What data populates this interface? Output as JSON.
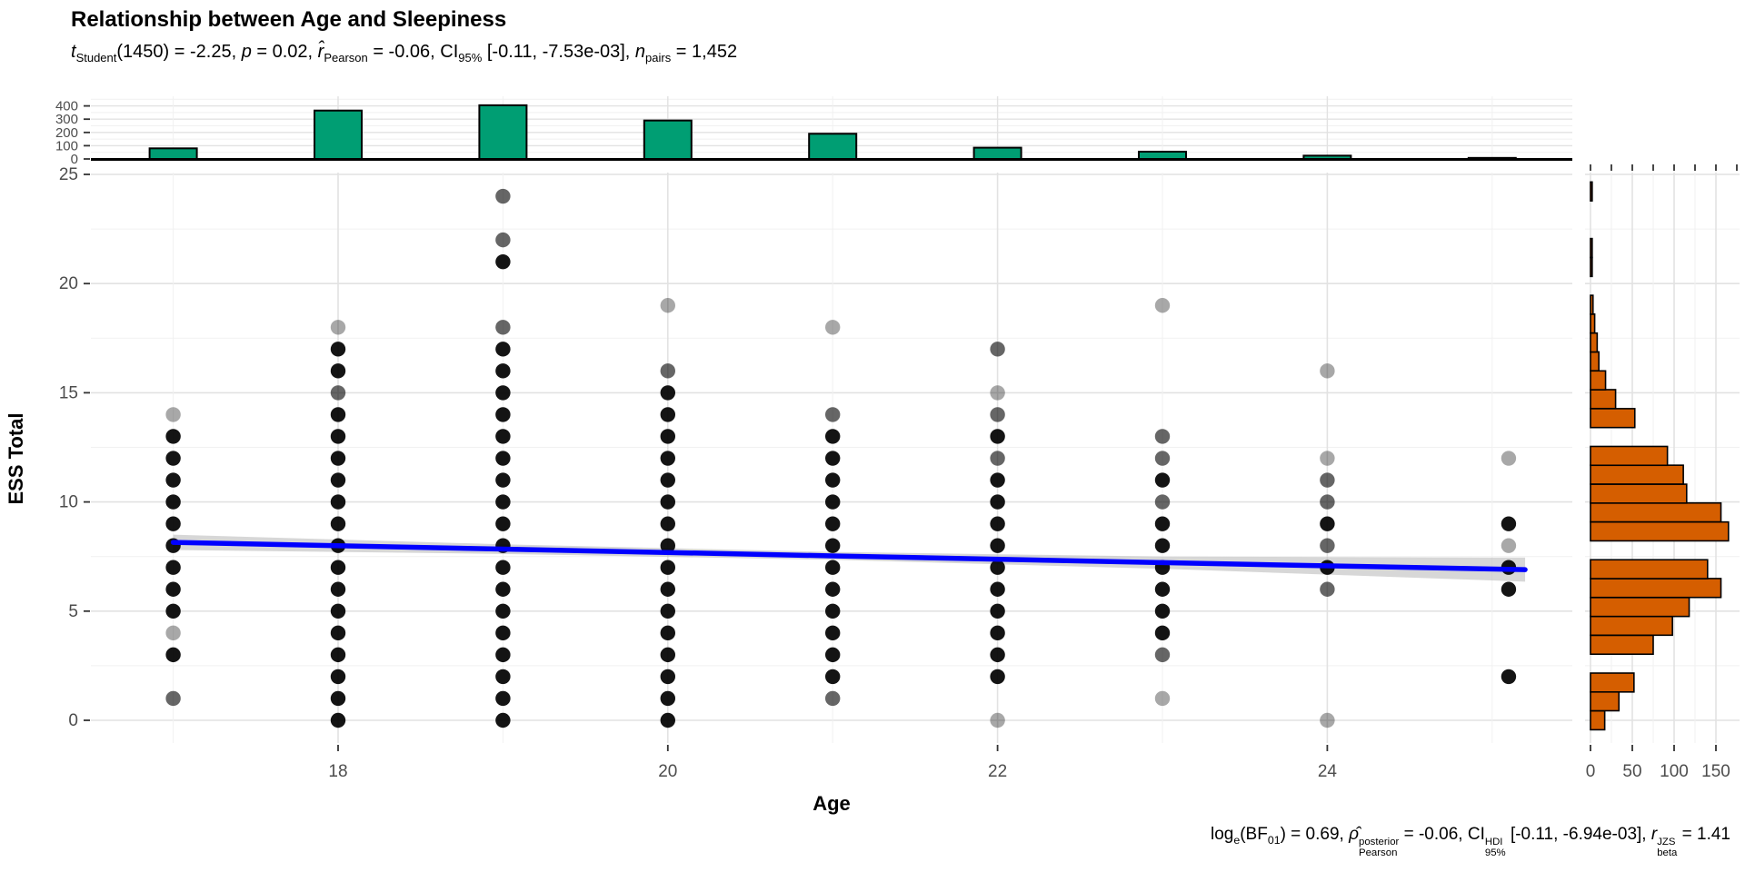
{
  "chart_data": {
    "type": "scatter",
    "title": "Relationship between Age and Sleepiness",
    "subtitle": "*t*_{Student}(1450) = -2.25, *p* = 0.02, *r̂*_{Pearson} = -0.06, CI_{95%} [-0.11, -7.53e-03], *n*_{pairs} = 1,452",
    "caption": "log_{e}(BF_{01}) = 0.69, *ρ̂*^{posterior}_{Pearson} = -0.06, CI^{HDI}_{95%} [-0.11, -6.94e-03], *r*^{JZS}_{beta} = 1.41",
    "xlabel": "Age",
    "ylabel": "ESS Total",
    "x_range": [
      16.5,
      25.5
    ],
    "y_range": [
      -1,
      25.1
    ],
    "x_ticks": [
      18,
      20,
      22,
      24
    ],
    "x_minor_ticks": [
      17,
      19,
      21,
      23,
      25
    ],
    "y_ticks": [
      0,
      5,
      10,
      15,
      20,
      25
    ],
    "y_minor_ticks": [
      2.5,
      7.5,
      12.5,
      17.5,
      22.5
    ],
    "grid": true,
    "legend": "none",
    "colors": {
      "top_hist_fill": "#009E73",
      "right_hist_fill": "#D55E00",
      "bar_stroke": "#000000",
      "regression_line": "#0000FF",
      "ci_ribbon": "#BDBDBD",
      "point": "#000000",
      "tick_label": "#4D4D4D",
      "axis_tick": "#333333",
      "grid_major": "#E2E2E2",
      "grid_minor": "#F1F1F1"
    },
    "points": [
      [
        17,
        14,
        "l"
      ],
      [
        17,
        13,
        "d"
      ],
      [
        17,
        12,
        "d"
      ],
      [
        17,
        11,
        "d"
      ],
      [
        17,
        10,
        "d"
      ],
      [
        17,
        9,
        "d"
      ],
      [
        17,
        8,
        "d"
      ],
      [
        17,
        7,
        "d"
      ],
      [
        17,
        6,
        "d"
      ],
      [
        17,
        5,
        "d"
      ],
      [
        17,
        4,
        "l"
      ],
      [
        17,
        3,
        "d"
      ],
      [
        17,
        1,
        "m"
      ],
      [
        18,
        18,
        "l"
      ],
      [
        18,
        17,
        "d"
      ],
      [
        18,
        16,
        "d"
      ],
      [
        18,
        15,
        "m"
      ],
      [
        18,
        14,
        "d"
      ],
      [
        18,
        13,
        "d"
      ],
      [
        18,
        12,
        "d"
      ],
      [
        18,
        11,
        "d"
      ],
      [
        18,
        10,
        "d"
      ],
      [
        18,
        9,
        "d"
      ],
      [
        18,
        8,
        "d"
      ],
      [
        18,
        7,
        "d"
      ],
      [
        18,
        6,
        "d"
      ],
      [
        18,
        5,
        "d"
      ],
      [
        18,
        4,
        "d"
      ],
      [
        18,
        3,
        "d"
      ],
      [
        18,
        2,
        "d"
      ],
      [
        18,
        1,
        "d"
      ],
      [
        18,
        0,
        "d"
      ],
      [
        19,
        24,
        "m"
      ],
      [
        19,
        22,
        "m"
      ],
      [
        19,
        21,
        "d"
      ],
      [
        19,
        18,
        "m"
      ],
      [
        19,
        17,
        "d"
      ],
      [
        19,
        16,
        "d"
      ],
      [
        19,
        15,
        "d"
      ],
      [
        19,
        14,
        "d"
      ],
      [
        19,
        13,
        "d"
      ],
      [
        19,
        12,
        "d"
      ],
      [
        19,
        11,
        "d"
      ],
      [
        19,
        10,
        "d"
      ],
      [
        19,
        9,
        "d"
      ],
      [
        19,
        8,
        "d"
      ],
      [
        19,
        7,
        "d"
      ],
      [
        19,
        6,
        "d"
      ],
      [
        19,
        5,
        "d"
      ],
      [
        19,
        4,
        "d"
      ],
      [
        19,
        3,
        "d"
      ],
      [
        19,
        2,
        "d"
      ],
      [
        19,
        1,
        "d"
      ],
      [
        19,
        0,
        "d"
      ],
      [
        20,
        19,
        "l"
      ],
      [
        20,
        16,
        "m"
      ],
      [
        20,
        15,
        "d"
      ],
      [
        20,
        14,
        "d"
      ],
      [
        20,
        13,
        "d"
      ],
      [
        20,
        12,
        "d"
      ],
      [
        20,
        11,
        "d"
      ],
      [
        20,
        10,
        "d"
      ],
      [
        20,
        9,
        "d"
      ],
      [
        20,
        8,
        "d"
      ],
      [
        20,
        7,
        "d"
      ],
      [
        20,
        6,
        "d"
      ],
      [
        20,
        5,
        "d"
      ],
      [
        20,
        4,
        "d"
      ],
      [
        20,
        3,
        "d"
      ],
      [
        20,
        2,
        "d"
      ],
      [
        20,
        1,
        "d"
      ],
      [
        20,
        0,
        "d"
      ],
      [
        21,
        18,
        "l"
      ],
      [
        21,
        14,
        "m"
      ],
      [
        21,
        13,
        "d"
      ],
      [
        21,
        12,
        "d"
      ],
      [
        21,
        11,
        "d"
      ],
      [
        21,
        10,
        "d"
      ],
      [
        21,
        9,
        "d"
      ],
      [
        21,
        8,
        "d"
      ],
      [
        21,
        7,
        "d"
      ],
      [
        21,
        6,
        "d"
      ],
      [
        21,
        5,
        "d"
      ],
      [
        21,
        4,
        "d"
      ],
      [
        21,
        3,
        "d"
      ],
      [
        21,
        2,
        "d"
      ],
      [
        21,
        1,
        "m"
      ],
      [
        22,
        17,
        "m"
      ],
      [
        22,
        15,
        "l"
      ],
      [
        22,
        14,
        "m"
      ],
      [
        22,
        13,
        "d"
      ],
      [
        22,
        12,
        "m"
      ],
      [
        22,
        11,
        "d"
      ],
      [
        22,
        10,
        "d"
      ],
      [
        22,
        9,
        "d"
      ],
      [
        22,
        8,
        "d"
      ],
      [
        22,
        7,
        "d"
      ],
      [
        22,
        6,
        "d"
      ],
      [
        22,
        5,
        "d"
      ],
      [
        22,
        4,
        "d"
      ],
      [
        22,
        3,
        "d"
      ],
      [
        22,
        2,
        "d"
      ],
      [
        22,
        0,
        "l"
      ],
      [
        23,
        19,
        "l"
      ],
      [
        23,
        13,
        "m"
      ],
      [
        23,
        12,
        "m"
      ],
      [
        23,
        11,
        "d"
      ],
      [
        23,
        10,
        "m"
      ],
      [
        23,
        9,
        "d"
      ],
      [
        23,
        8,
        "d"
      ],
      [
        23,
        7,
        "d"
      ],
      [
        23,
        6,
        "d"
      ],
      [
        23,
        5,
        "d"
      ],
      [
        23,
        4,
        "d"
      ],
      [
        23,
        3,
        "m"
      ],
      [
        23,
        1,
        "l"
      ],
      [
        24,
        16,
        "l"
      ],
      [
        24,
        12,
        "l"
      ],
      [
        24,
        11,
        "m"
      ],
      [
        24,
        10,
        "m"
      ],
      [
        24,
        9,
        "d"
      ],
      [
        24,
        8,
        "m"
      ],
      [
        24,
        7,
        "d"
      ],
      [
        24,
        6,
        "m"
      ],
      [
        24,
        0,
        "l"
      ],
      [
        25.1,
        12,
        "l"
      ],
      [
        25.1,
        9,
        "d"
      ],
      [
        25.1,
        8,
        "l"
      ],
      [
        25.1,
        7,
        "d"
      ],
      [
        25.1,
        6,
        "d"
      ],
      [
        25.1,
        2,
        "d"
      ]
    ],
    "regression": {
      "x": [
        17,
        19,
        21,
        23,
        25.2
      ],
      "y": [
        8.15,
        7.84,
        7.53,
        7.22,
        6.9
      ],
      "ci_upper": [
        8.5,
        8.06,
        7.71,
        7.5,
        7.45
      ],
      "ci_lower": [
        7.8,
        7.62,
        7.35,
        6.94,
        6.35
      ]
    },
    "top_histogram": {
      "ylabel_ticks": [
        0,
        100,
        200,
        300,
        400
      ],
      "minor_ticks": [
        50,
        150,
        250,
        350,
        450
      ],
      "bins": [
        {
          "age": 17,
          "count": 80
        },
        {
          "age": 18,
          "count": 365
        },
        {
          "age": 19,
          "count": 405
        },
        {
          "age": 20,
          "count": 290
        },
        {
          "age": 21,
          "count": 190
        },
        {
          "age": 22,
          "count": 85
        },
        {
          "age": 23,
          "count": 55
        },
        {
          "age": 24,
          "count": 25
        },
        {
          "age": 25,
          "count": 8
        }
      ]
    },
    "right_histogram": {
      "x_ticks": [
        0,
        50,
        100,
        150
      ],
      "minor_ticks": [
        25,
        75,
        125
      ],
      "bins": [
        [
          0.0,
          17
        ],
        [
          0.87,
          34
        ],
        [
          1.73,
          52
        ],
        [
          2.6,
          0
        ],
        [
          3.46,
          75
        ],
        [
          4.33,
          98
        ],
        [
          5.19,
          118
        ],
        [
          6.06,
          156
        ],
        [
          6.92,
          140
        ],
        [
          7.79,
          0
        ],
        [
          8.65,
          165
        ],
        [
          9.52,
          156
        ],
        [
          10.38,
          115
        ],
        [
          11.25,
          111
        ],
        [
          12.11,
          92
        ],
        [
          12.98,
          0
        ],
        [
          13.84,
          53
        ],
        [
          14.71,
          30
        ],
        [
          15.57,
          18
        ],
        [
          16.44,
          10
        ],
        [
          17.3,
          8
        ],
        [
          18.17,
          5
        ],
        [
          19.03,
          3
        ],
        [
          19.9,
          0
        ],
        [
          20.76,
          2
        ],
        [
          21.63,
          2
        ],
        [
          22.49,
          0
        ],
        [
          23.36,
          0
        ],
        [
          24.22,
          2
        ]
      ]
    }
  }
}
